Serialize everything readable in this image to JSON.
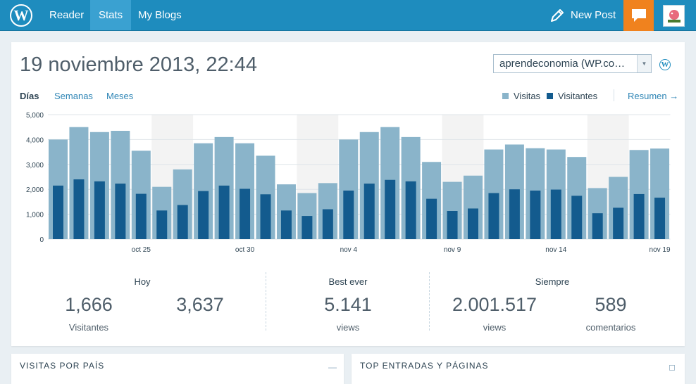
{
  "nav": {
    "reader": "Reader",
    "stats": "Stats",
    "my_blogs": "My Blogs",
    "new_post": "New Post",
    "logo_icon": "wordpress-logo-icon",
    "notifications_icon": "speech-bubble-icon",
    "avatar_icon": "avatar-image"
  },
  "header": {
    "date": "19 noviembre 2013, 22:44",
    "site_selected": "aprendeconomia (WP.co…"
  },
  "periods": {
    "days": "Días",
    "weeks": "Semanas",
    "months": "Meses"
  },
  "legend": {
    "visits": "Visitas",
    "visitors": "Visitantes",
    "summary": "Resumen"
  },
  "colors": {
    "visits": "#8ab4ca",
    "visitors": "#135b8e",
    "accent": "#1e8cbe",
    "notif": "#f0821e"
  },
  "chart_data": {
    "type": "bar",
    "ylim": [
      0,
      5000
    ],
    "yticks": [
      "0",
      "1,000",
      "2,000",
      "3,000",
      "4,000",
      "5,000"
    ],
    "xtick_labels": [
      {
        "index": 5,
        "label": "oct 25"
      },
      {
        "index": 10,
        "label": "oct 30"
      },
      {
        "index": 15,
        "label": "nov 4"
      },
      {
        "index": 20,
        "label": "nov 9"
      },
      {
        "index": 25,
        "label": "nov 14"
      },
      {
        "index": 30,
        "label": "nov 19"
      }
    ],
    "weekend_pairs": [
      [
        5,
        6
      ],
      [
        12,
        13
      ],
      [
        19,
        20
      ],
      [
        26,
        27
      ]
    ],
    "series": [
      {
        "name": "Visitas",
        "values": [
          4000,
          4500,
          4300,
          4350,
          3550,
          2100,
          2800,
          3850,
          4100,
          3850,
          3350,
          2200,
          1850,
          2250,
          4000,
          4300,
          4500,
          4100,
          3100,
          2300,
          2550,
          3600,
          3800,
          3650,
          3600,
          3300,
          2050,
          2500,
          3580,
          3637
        ]
      },
      {
        "name": "Visitantes",
        "values": [
          2150,
          2400,
          2320,
          2230,
          1820,
          1150,
          1370,
          1930,
          2150,
          2020,
          1800,
          1150,
          930,
          1200,
          1950,
          2230,
          2380,
          2320,
          1620,
          1130,
          1230,
          1850,
          2000,
          1950,
          1990,
          1740,
          1040,
          1260,
          1810,
          1666
        ]
      }
    ]
  },
  "stats": {
    "today": {
      "label": "Hoy",
      "visitors": "1,666",
      "visitors_label": "Visitantes",
      "visits": "3,637"
    },
    "best": {
      "label": "Best ever",
      "value": "5.141",
      "sub": "views"
    },
    "always": {
      "label": "Siempre",
      "views": "2.001.517",
      "views_label": "views",
      "comments": "589",
      "comments_label": "comentarios"
    }
  },
  "panels": {
    "country": {
      "title": "VISITAS POR PAÍS",
      "ctrl": "—"
    },
    "top": {
      "title": "TOP ENTRADAS Y PÁGINAS",
      "ctrl": "◻"
    }
  }
}
